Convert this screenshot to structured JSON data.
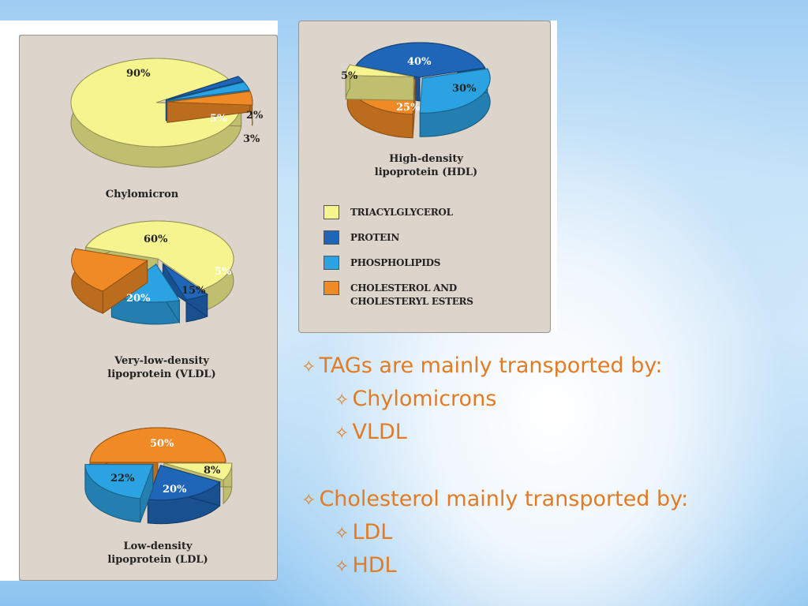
{
  "colors": {
    "triacylglycerol": "#f6f48e",
    "protein": "#1f66b8",
    "phospholipids": "#2ba3e2",
    "cholesterol": "#f08a25"
  },
  "chart_data": [
    {
      "type": "pie",
      "title": "Chylomicron",
      "slices": [
        {
          "label": "Triacylglycerol",
          "value": 90,
          "value_label": "90%"
        },
        {
          "label": "Protein",
          "value": 2,
          "value_label": "2%"
        },
        {
          "label": "Phospholipids",
          "value": 3,
          "value_label": "3%"
        },
        {
          "label": "Cholesterol and cholesteryl esters",
          "value": 5,
          "value_label": "5%"
        }
      ]
    },
    {
      "type": "pie",
      "title": "Very-low-density\nlipoprotein (VLDL)",
      "slices": [
        {
          "label": "Triacylglycerol",
          "value": 60,
          "value_label": "60%"
        },
        {
          "label": "Protein",
          "value": 5,
          "value_label": "5%"
        },
        {
          "label": "Phospholipids",
          "value": 15,
          "value_label": "15%"
        },
        {
          "label": "Cholesterol and cholesteryl esters",
          "value": 20,
          "value_label": "20%"
        }
      ]
    },
    {
      "type": "pie",
      "title": "Low-density\nlipoprotein (LDL)",
      "slices": [
        {
          "label": "Cholesterol and cholesteryl esters",
          "value": 50,
          "value_label": "50%"
        },
        {
          "label": "Triacylglycerol",
          "value": 8,
          "value_label": "8%"
        },
        {
          "label": "Protein",
          "value": 20,
          "value_label": "20%"
        },
        {
          "label": "Phospholipids",
          "value": 22,
          "value_label": "22%"
        }
      ]
    },
    {
      "type": "pie",
      "title": "High-density\nlipoprotein (HDL)",
      "slices": [
        {
          "label": "Protein",
          "value": 40,
          "value_label": "40%"
        },
        {
          "label": "Phospholipids",
          "value": 30,
          "value_label": "30%"
        },
        {
          "label": "Cholesterol and cholesteryl esters",
          "value": 25,
          "value_label": "25%"
        },
        {
          "label": "Triacylglycerol",
          "value": 5,
          "value_label": "5%"
        }
      ]
    }
  ],
  "legend": [
    {
      "label": "TRIACYLGLYCEROL",
      "color": "#f6f48e"
    },
    {
      "label": "PROTEIN",
      "color": "#1f66b8"
    },
    {
      "label": "PHOSPHOLIPIDS",
      "color": "#2ba3e2"
    },
    {
      "label": "CHOLESTEROL  AND\nCHOLESTERYL ESTERS",
      "color": "#f08a25"
    }
  ],
  "bullets": {
    "star": "✧",
    "tags_heading": "TAGs are mainly transported by:",
    "tags_items": [
      "Chylomicrons",
      "VLDL"
    ],
    "chol_heading": "Cholesterol mainly transported by:",
    "chol_items": [
      "LDL",
      "HDL"
    ]
  }
}
